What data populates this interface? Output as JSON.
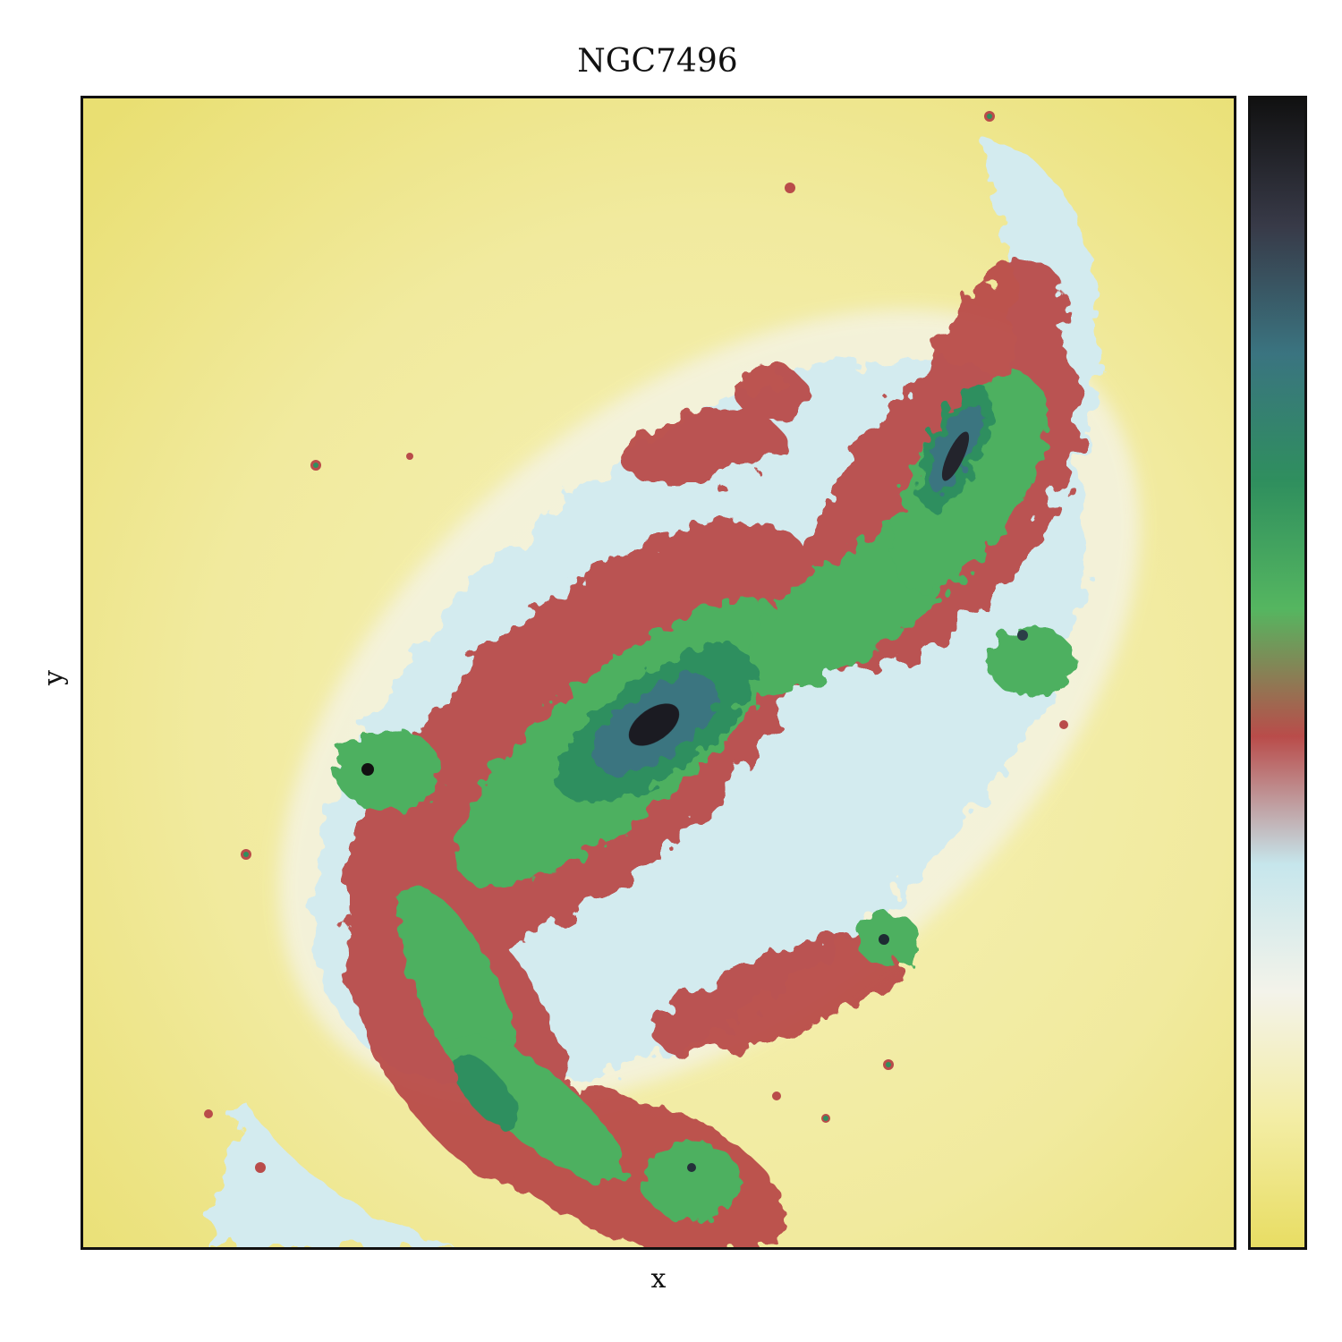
{
  "figure": {
    "title": "NGC7496",
    "xlabel": "x",
    "ylabel": "y"
  },
  "colormap": {
    "stops": [
      "#e8dd63",
      "#f3eda4",
      "#f3f3ea",
      "#c6e6ec",
      "#b94c4a",
      "#55b660",
      "#2f8f5e",
      "#3a7480",
      "#383a48",
      "#111111"
    ]
  }
}
